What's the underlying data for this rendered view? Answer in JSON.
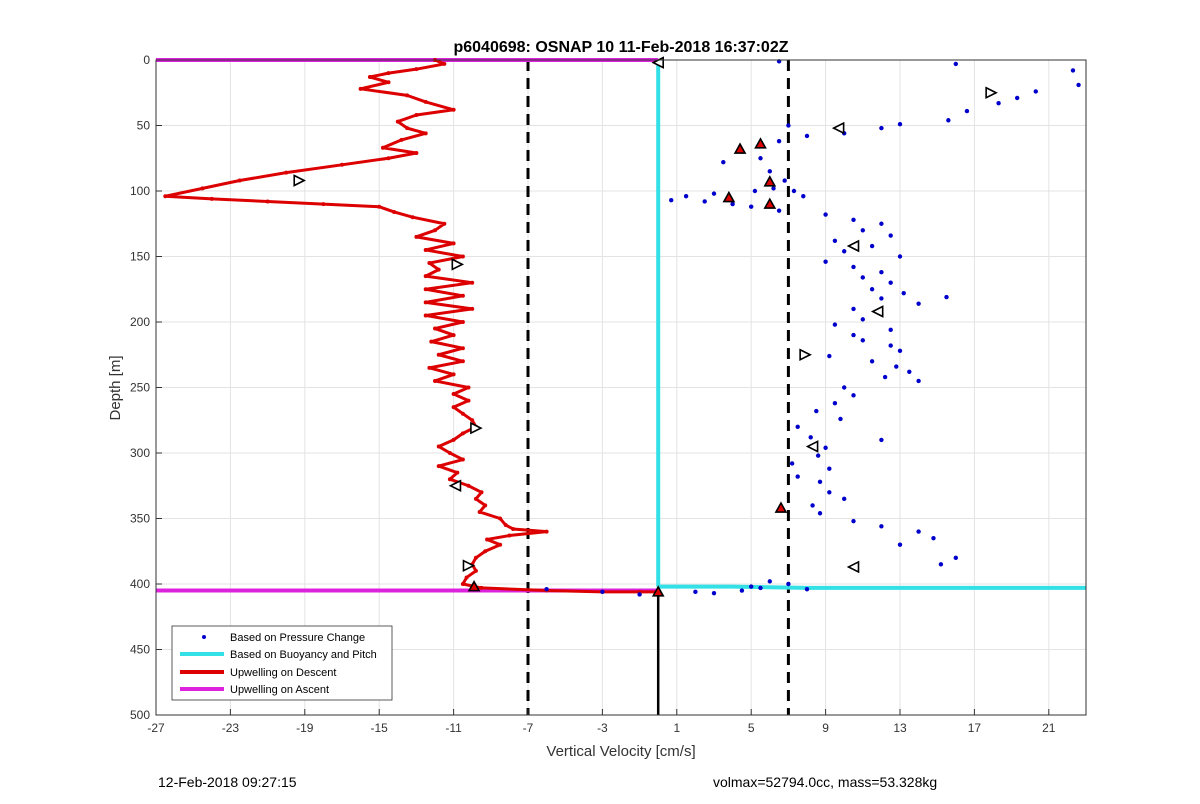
{
  "chart_data": {
    "type": "scatter",
    "title": "p6040698: OSNAP 10 11-Feb-2018 16:37:02Z",
    "xlabel": "Vertical Velocity [cm/s]",
    "ylabel": "Depth [m]",
    "xlim": [
      -27,
      23
    ],
    "ylim": [
      0,
      500
    ],
    "y_reversed": true,
    "x_ticks": [
      -27,
      -23,
      -19,
      -15,
      -11,
      -7,
      -3,
      1,
      5,
      9,
      13,
      17,
      21
    ],
    "y_ticks": [
      0,
      50,
      100,
      150,
      200,
      250,
      300,
      350,
      400,
      450,
      500
    ],
    "grid": true,
    "legend_position": "bottom-left",
    "legend": [
      {
        "label": "Based on Pressure Change",
        "color": "#0000cc",
        "style": "dot"
      },
      {
        "label": "Based on Buoyancy and Pitch",
        "color": "#33e0e6",
        "style": "line"
      },
      {
        "label": "Upwelling on Descent",
        "color": "#dd0000",
        "style": "line"
      },
      {
        "label": "Upwelling on Ascent",
        "color": "#dd22dd",
        "style": "line"
      }
    ],
    "reference_lines": {
      "dashed_x": [
        -7,
        7
      ],
      "black_solid_x": 0,
      "black_solid_depth": [
        406,
        500
      ]
    },
    "series": [
      {
        "name": "Upwelling on Descent",
        "color": "#dd0000",
        "points": [
          [
            -12,
            0
          ],
          [
            -11.5,
            3
          ],
          [
            -13,
            7
          ],
          [
            -14.5,
            10
          ],
          [
            -15.5,
            13
          ],
          [
            -14.5,
            17
          ],
          [
            -16,
            22
          ],
          [
            -13.5,
            27
          ],
          [
            -12.5,
            32
          ],
          [
            -11,
            38
          ],
          [
            -13,
            42
          ],
          [
            -14,
            47
          ],
          [
            -13.5,
            52
          ],
          [
            -12.5,
            56
          ],
          [
            -13.8,
            61
          ],
          [
            -14.8,
            67
          ],
          [
            -13,
            71
          ],
          [
            -14.5,
            75
          ],
          [
            -17,
            80
          ],
          [
            -20,
            86
          ],
          [
            -22.5,
            92
          ],
          [
            -24.5,
            98
          ],
          [
            -26.5,
            104
          ],
          [
            -24,
            106
          ],
          [
            -21,
            108
          ],
          [
            -18,
            110
          ],
          [
            -15,
            112
          ],
          [
            -14.2,
            116
          ],
          [
            -13.2,
            120
          ],
          [
            -11.5,
            125
          ],
          [
            -12,
            130
          ],
          [
            -13,
            135
          ],
          [
            -11,
            140
          ],
          [
            -12.5,
            145
          ],
          [
            -10.5,
            150
          ],
          [
            -12.3,
            155
          ],
          [
            -11.8,
            160
          ],
          [
            -12.5,
            165
          ],
          [
            -10,
            170
          ],
          [
            -12.5,
            175
          ],
          [
            -10.5,
            180
          ],
          [
            -12.5,
            185
          ],
          [
            -10,
            190
          ],
          [
            -12.5,
            195
          ],
          [
            -10.5,
            200
          ],
          [
            -12,
            205
          ],
          [
            -11,
            210
          ],
          [
            -12.2,
            215
          ],
          [
            -10.5,
            220
          ],
          [
            -11.8,
            225
          ],
          [
            -10.5,
            230
          ],
          [
            -12.3,
            235
          ],
          [
            -11,
            240
          ],
          [
            -12,
            245
          ],
          [
            -10.2,
            250
          ],
          [
            -11,
            255
          ],
          [
            -10.2,
            260
          ],
          [
            -11,
            265
          ],
          [
            -10.5,
            270
          ],
          [
            -10,
            275
          ],
          [
            -9.8,
            280
          ],
          [
            -10.5,
            285
          ],
          [
            -11,
            290
          ],
          [
            -11.8,
            295
          ],
          [
            -11.2,
            300
          ],
          [
            -10.5,
            305
          ],
          [
            -11.8,
            310
          ],
          [
            -10.8,
            315
          ],
          [
            -11.2,
            320
          ],
          [
            -10.2,
            325
          ],
          [
            -9.5,
            330
          ],
          [
            -9.8,
            335
          ],
          [
            -9.3,
            340
          ],
          [
            -9.6,
            345
          ],
          [
            -8.5,
            350
          ],
          [
            -8.2,
            355
          ],
          [
            -7.8,
            358
          ],
          [
            -6,
            360
          ],
          [
            -8,
            363
          ],
          [
            -9.2,
            366
          ],
          [
            -8.5,
            370
          ],
          [
            -9.3,
            375
          ],
          [
            -9.8,
            380
          ],
          [
            -10,
            385
          ],
          [
            -9.8,
            390
          ],
          [
            -10.3,
            395
          ],
          [
            -10.5,
            400
          ],
          [
            -9.5,
            403
          ],
          [
            -6,
            405
          ],
          [
            -3,
            406
          ],
          [
            -1,
            406
          ],
          [
            0,
            406
          ]
        ]
      },
      {
        "name": "Based on Pressure Change",
        "color": "#0000cc",
        "points": [
          [
            16,
            3
          ],
          [
            6.5,
            1
          ],
          [
            22.3,
            8
          ],
          [
            22.6,
            19
          ],
          [
            20.3,
            24
          ],
          [
            19.3,
            29
          ],
          [
            18.3,
            33
          ],
          [
            16.6,
            39
          ],
          [
            15.6,
            46
          ],
          [
            13,
            49
          ],
          [
            12,
            52
          ],
          [
            10,
            56
          ],
          [
            8,
            58
          ],
          [
            7,
            50
          ],
          [
            6.5,
            62
          ],
          [
            4.5,
            70
          ],
          [
            5.5,
            75
          ],
          [
            3.5,
            78
          ],
          [
            6,
            85
          ],
          [
            6.8,
            92
          ],
          [
            6.2,
            98
          ],
          [
            5.2,
            100
          ],
          [
            3,
            102
          ],
          [
            1.5,
            104
          ],
          [
            0.7,
            107
          ],
          [
            2.5,
            108
          ],
          [
            4,
            110
          ],
          [
            5,
            112
          ],
          [
            6.5,
            115
          ],
          [
            7.3,
            100
          ],
          [
            7.8,
            104
          ],
          [
            9,
            118
          ],
          [
            10.5,
            122
          ],
          [
            12,
            125
          ],
          [
            11,
            130
          ],
          [
            12.5,
            134
          ],
          [
            9.5,
            138
          ],
          [
            11.5,
            142
          ],
          [
            10,
            146
          ],
          [
            13,
            150
          ],
          [
            9,
            154
          ],
          [
            10.5,
            158
          ],
          [
            12,
            162
          ],
          [
            11,
            166
          ],
          [
            12.5,
            170
          ],
          [
            11.5,
            175
          ],
          [
            13.2,
            178
          ],
          [
            12,
            182
          ],
          [
            15.5,
            181
          ],
          [
            14,
            186
          ],
          [
            10.5,
            190
          ],
          [
            12,
            194
          ],
          [
            11,
            198
          ],
          [
            9.5,
            202
          ],
          [
            12.5,
            206
          ],
          [
            10.5,
            210
          ],
          [
            11,
            214
          ],
          [
            12.5,
            218
          ],
          [
            13,
            222
          ],
          [
            9.2,
            226
          ],
          [
            11.5,
            230
          ],
          [
            12.8,
            234
          ],
          [
            13.5,
            238
          ],
          [
            12.2,
            242
          ],
          [
            14,
            245
          ],
          [
            10,
            250
          ],
          [
            10.5,
            256
          ],
          [
            9.5,
            262
          ],
          [
            8.5,
            268
          ],
          [
            9.8,
            274
          ],
          [
            7.5,
            280
          ],
          [
            8.2,
            288
          ],
          [
            12,
            290
          ],
          [
            9,
            296
          ],
          [
            8.6,
            302
          ],
          [
            7.2,
            308
          ],
          [
            9.2,
            312
          ],
          [
            7.5,
            318
          ],
          [
            8.7,
            322
          ],
          [
            9.2,
            330
          ],
          [
            10,
            335
          ],
          [
            8.3,
            340
          ],
          [
            8.7,
            346
          ],
          [
            10.5,
            352
          ],
          [
            12,
            356
          ],
          [
            14,
            360
          ],
          [
            14.8,
            365
          ],
          [
            13,
            370
          ],
          [
            16,
            380
          ],
          [
            15.2,
            385
          ],
          [
            6,
            398
          ],
          [
            5,
            402
          ],
          [
            7,
            400
          ],
          [
            4.5,
            405
          ],
          [
            5.5,
            403
          ],
          [
            3,
            407
          ],
          [
            2,
            406
          ],
          [
            -1,
            408
          ],
          [
            -6,
            404
          ],
          [
            -3,
            406
          ],
          [
            8,
            404
          ]
        ]
      },
      {
        "name": "Based on Buoyancy and Pitch",
        "color": "#33e0e6",
        "points": [
          [
            0,
            0
          ],
          [
            0,
            100
          ],
          [
            0,
            250
          ],
          [
            0,
            402
          ],
          [
            4,
            402
          ],
          [
            8,
            403
          ],
          [
            12,
            403
          ],
          [
            16,
            403
          ],
          [
            20,
            403
          ],
          [
            23,
            403
          ]
        ]
      },
      {
        "name": "Upwelling on Ascent",
        "color": "#dd22dd",
        "points": [
          [
            -27,
            0
          ],
          [
            0,
            0
          ],
          [
            -27,
            405
          ],
          [
            0,
            405
          ]
        ]
      }
    ],
    "markers": {
      "triangles_right": [
        [
          -19.3,
          92
        ],
        [
          -10.8,
          156
        ],
        [
          -9.8,
          281
        ],
        [
          -10.2,
          386
        ],
        [
          17.9,
          25
        ],
        [
          7.9,
          225
        ]
      ],
      "triangles_left": [
        [
          -10.9,
          325
        ],
        [
          0,
          2
        ],
        [
          9.7,
          52
        ],
        [
          10.5,
          142
        ],
        [
          11.8,
          192
        ],
        [
          8.3,
          295
        ],
        [
          10.5,
          387
        ]
      ],
      "triangles_up": [
        [
          -9.9,
          402
        ],
        [
          5.5,
          64
        ],
        [
          4.4,
          68
        ],
        [
          6,
          93
        ],
        [
          3.8,
          105
        ],
        [
          6,
          110
        ],
        [
          6.6,
          342
        ],
        [
          0,
          406
        ]
      ]
    }
  },
  "footer": {
    "timestamp": "12-Feb-2018 09:27:15",
    "vehicle_info": "volmax=52794.0cc, mass=53.328kg"
  }
}
